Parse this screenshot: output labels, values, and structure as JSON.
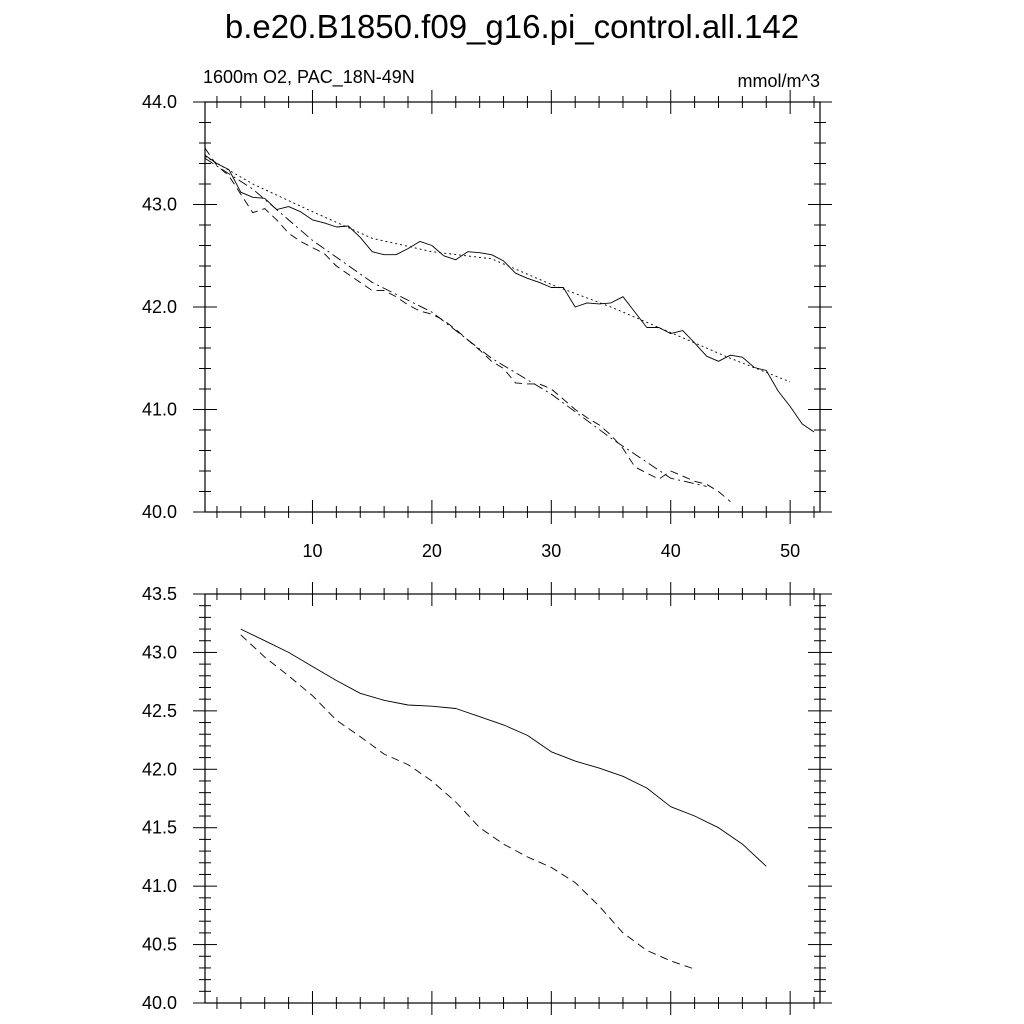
{
  "figure": {
    "title": "b.e20.B1850.f09_g16.pi_control.all.142",
    "left_label": "1600m O2, PAC_18N-49N",
    "right_label": "mmol/m^3"
  },
  "chart_data": [
    {
      "type": "line",
      "panel": "top",
      "xlim": [
        1,
        52.5
      ],
      "ylim": [
        40.0,
        44.0
      ],
      "xticks": [
        10,
        20,
        30,
        40,
        50
      ],
      "yticks": [
        40.0,
        41.0,
        42.0,
        43.0,
        44.0
      ],
      "ytick_labels": [
        "40.0",
        "41.0",
        "42.0",
        "43.0",
        "44.0"
      ],
      "x_tick_labels_shown": true,
      "grid": false,
      "series": [
        {
          "style": "solid",
          "x": [
            1,
            2,
            3,
            4,
            5,
            6,
            7,
            8,
            9,
            10,
            11,
            12,
            13,
            14,
            15,
            16,
            17,
            18,
            19,
            20,
            21,
            22,
            23,
            24,
            25,
            26,
            27,
            28,
            29,
            30,
            31,
            32,
            33,
            34,
            35,
            36,
            37,
            38,
            39,
            40,
            41,
            42,
            43,
            44,
            45,
            46,
            47,
            48,
            49,
            50,
            51,
            52
          ],
          "values": [
            43.48,
            43.4,
            43.34,
            43.12,
            43.07,
            43.06,
            42.95,
            42.98,
            42.93,
            42.85,
            42.82,
            42.78,
            42.79,
            42.68,
            42.54,
            42.51,
            42.51,
            42.57,
            42.64,
            42.6,
            42.5,
            42.46,
            42.54,
            42.53,
            42.51,
            42.45,
            42.33,
            42.28,
            42.24,
            42.19,
            42.19,
            42.0,
            42.04,
            42.03,
            42.04,
            42.1,
            41.95,
            41.8,
            41.8,
            41.74,
            41.77,
            41.65,
            41.52,
            41.47,
            41.53,
            41.51,
            41.41,
            41.38,
            41.18,
            41.03,
            40.86,
            40.78
          ]
        },
        {
          "style": "dotted",
          "x": [
            1,
            5,
            10,
            15,
            20,
            25,
            30,
            35,
            40,
            45,
            50
          ],
          "values": [
            43.47,
            43.2,
            42.93,
            42.67,
            42.54,
            42.47,
            42.22,
            42.0,
            41.75,
            41.5,
            41.27
          ]
        },
        {
          "style": "dashed",
          "x": [
            1,
            2,
            3,
            4,
            5,
            6,
            7,
            8,
            9,
            10,
            11,
            12,
            13,
            14,
            15,
            16,
            17,
            18,
            19,
            20,
            21,
            22,
            23,
            24,
            25,
            26,
            27,
            28,
            29,
            30,
            31,
            32,
            33,
            34,
            35,
            36,
            37,
            38,
            39,
            40,
            41,
            42,
            43,
            44,
            45
          ],
          "values": [
            43.55,
            43.38,
            43.28,
            43.1,
            42.92,
            42.96,
            42.85,
            42.72,
            42.64,
            42.58,
            42.52,
            42.4,
            42.32,
            42.24,
            42.16,
            42.16,
            42.1,
            42.02,
            41.96,
            41.93,
            41.87,
            41.78,
            41.68,
            41.58,
            41.47,
            41.4,
            41.26,
            41.25,
            41.25,
            41.2,
            41.1,
            41.0,
            40.92,
            40.85,
            40.75,
            40.62,
            40.44,
            40.38,
            40.32,
            40.4,
            40.35,
            40.3,
            40.27,
            40.2,
            40.1
          ]
        },
        {
          "style": "dashdot",
          "x": [
            1,
            5,
            10,
            15,
            20,
            25,
            30,
            35,
            40,
            43
          ],
          "values": [
            43.45,
            43.15,
            42.65,
            42.24,
            41.95,
            41.5,
            41.15,
            40.72,
            40.33,
            40.25
          ]
        }
      ]
    },
    {
      "type": "line",
      "panel": "bottom",
      "xlim": [
        1,
        52.5
      ],
      "ylim": [
        40.0,
        43.5
      ],
      "xticks": [
        10,
        20,
        30,
        40,
        50
      ],
      "yticks": [
        40.0,
        40.5,
        41.0,
        41.5,
        42.0,
        42.5,
        43.0,
        43.5
      ],
      "ytick_labels": [
        "40.0",
        "40.5",
        "41.0",
        "41.5",
        "42.0",
        "42.5",
        "43.0",
        "43.5"
      ],
      "x_tick_labels_shown": false,
      "grid": false,
      "series": [
        {
          "style": "solid",
          "x": [
            4,
            6,
            8,
            10,
            12,
            14,
            16,
            18,
            20,
            22,
            24,
            26,
            28,
            30,
            32,
            34,
            36,
            38,
            40,
            42,
            44,
            46,
            48
          ],
          "values": [
            43.2,
            43.1,
            43.0,
            42.88,
            42.76,
            42.65,
            42.59,
            42.55,
            42.54,
            42.52,
            42.45,
            42.38,
            42.29,
            42.15,
            42.07,
            42.01,
            41.94,
            41.84,
            41.68,
            41.6,
            41.5,
            41.36,
            41.17
          ]
        },
        {
          "style": "dashed",
          "x": [
            4,
            6,
            8,
            10,
            12,
            14,
            16,
            18,
            20,
            22,
            24,
            26,
            28,
            30,
            32,
            34,
            36,
            38,
            40,
            42
          ],
          "values": [
            43.15,
            42.96,
            42.8,
            42.63,
            42.42,
            42.28,
            42.13,
            42.04,
            41.9,
            41.72,
            41.5,
            41.36,
            41.25,
            41.16,
            41.03,
            40.83,
            40.6,
            40.45,
            40.36,
            40.29
          ]
        }
      ]
    }
  ]
}
